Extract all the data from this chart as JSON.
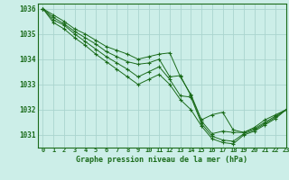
{
  "title": "Graphe pression niveau de la mer (hPa)",
  "background_color": "#cceee8",
  "grid_color": "#aad4ce",
  "line_color": "#1a6b1a",
  "text_color": "#1a6b1a",
  "xlim": [
    -0.5,
    23
  ],
  "ylim": [
    1030.5,
    1036.2
  ],
  "yticks": [
    1031,
    1032,
    1033,
    1034,
    1035,
    1036
  ],
  "xticks": [
    0,
    1,
    2,
    3,
    4,
    5,
    6,
    7,
    8,
    9,
    10,
    11,
    12,
    13,
    14,
    15,
    16,
    17,
    18,
    19,
    20,
    21,
    22,
    23
  ],
  "series": [
    [
      1036.0,
      1035.75,
      1035.5,
      1035.2,
      1035.0,
      1034.75,
      1034.5,
      1034.35,
      1034.2,
      1034.0,
      1034.1,
      1034.2,
      1034.25,
      1033.3,
      1032.6,
      1031.6,
      1031.8,
      1031.9,
      1031.2,
      1031.1,
      1031.3,
      1031.6,
      1031.8,
      1032.0
    ],
    [
      1036.0,
      1035.65,
      1035.4,
      1035.1,
      1034.85,
      1034.6,
      1034.3,
      1034.1,
      1033.9,
      1033.8,
      1033.85,
      1034.0,
      1033.3,
      1033.35,
      1032.55,
      1031.55,
      1031.05,
      1031.15,
      1031.1,
      1031.1,
      1031.25,
      1031.5,
      1031.75,
      1032.0
    ],
    [
      1036.0,
      1035.55,
      1035.35,
      1035.0,
      1034.7,
      1034.4,
      1034.1,
      1033.85,
      1033.6,
      1033.3,
      1033.5,
      1033.7,
      1033.2,
      1032.55,
      1032.5,
      1031.45,
      1030.95,
      1030.8,
      1030.75,
      1031.05,
      1031.2,
      1031.45,
      1031.7,
      1032.0
    ],
    [
      1036.0,
      1035.45,
      1035.2,
      1034.85,
      1034.55,
      1034.2,
      1033.9,
      1033.6,
      1033.3,
      1033.0,
      1033.2,
      1033.4,
      1033.0,
      1032.4,
      1032.0,
      1031.35,
      1030.85,
      1030.7,
      1030.65,
      1031.0,
      1031.15,
      1031.4,
      1031.65,
      1032.0
    ]
  ]
}
